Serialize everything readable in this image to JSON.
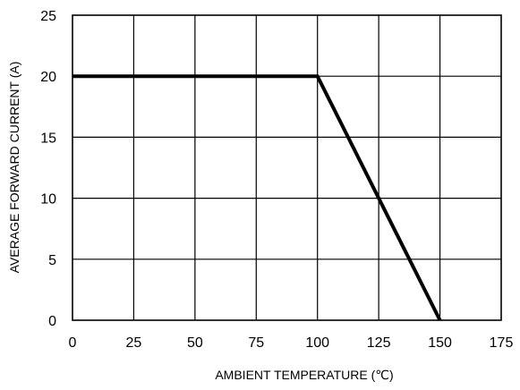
{
  "chart_data": {
    "type": "line",
    "xlabel": "AMBIENT TEMPERATURE (℃)",
    "ylabel": "AVERAGE FORWARD CURRENT (A)",
    "xlim": [
      0,
      175
    ],
    "ylim": [
      0,
      25
    ],
    "x_ticks": [
      0,
      25,
      50,
      75,
      100,
      125,
      150,
      175
    ],
    "y_ticks": [
      0,
      5,
      10,
      15,
      20,
      25
    ],
    "x_tick_labels": [
      "0",
      "25",
      "50",
      "75",
      "100",
      "125",
      "150",
      "175"
    ],
    "y_tick_labels": [
      "0",
      "5",
      "10",
      "15",
      "20",
      "25"
    ],
    "grid": true,
    "series": [
      {
        "x": [
          0,
          100,
          150
        ],
        "y": [
          20,
          20,
          0
        ]
      }
    ],
    "colors": {
      "line": "#000000",
      "grid": "#000000",
      "frame": "#000000"
    }
  }
}
